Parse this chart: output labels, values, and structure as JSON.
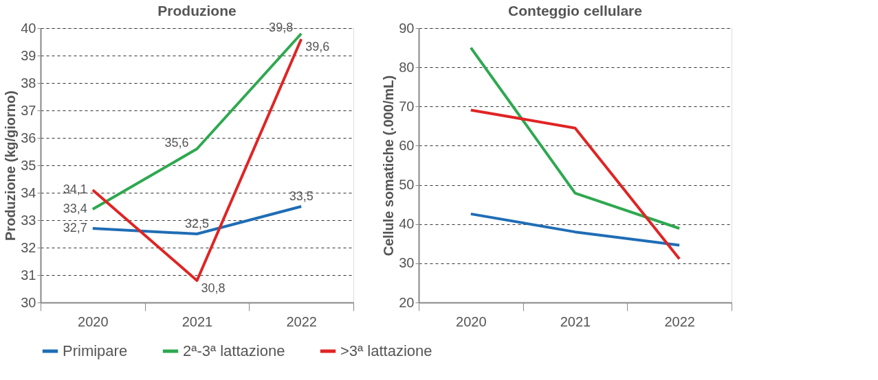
{
  "chart_data": [
    {
      "type": "line",
      "title": "Produzione",
      "ylabel": "Produzione (kg/giorno)",
      "categories": [
        "2020",
        "2021",
        "2022"
      ],
      "series": [
        {
          "name": "Primipare",
          "color": "#1f6db5",
          "values": [
            32.7,
            32.5,
            33.5
          ],
          "value_labels": [
            "32,7",
            "32,5",
            "33,5"
          ]
        },
        {
          "name": "2ª-3ª lattazione",
          "color": "#2ea84f",
          "values": [
            33.4,
            35.6,
            39.8
          ],
          "value_labels": [
            "33,4",
            "35,6",
            "39,8"
          ]
        },
        {
          "name": ">3ª lattazione",
          "color": "#e02424",
          "values": [
            34.1,
            30.8,
            39.6
          ],
          "value_labels": [
            "34,1",
            "30,8",
            "39,6"
          ]
        }
      ],
      "ylim": [
        30,
        40
      ],
      "yticks": [
        30,
        31,
        32,
        33,
        34,
        35,
        36,
        37,
        38,
        39,
        40
      ],
      "grid": "y",
      "legend": "bottom",
      "marker": "none",
      "line_style": "solid"
    },
    {
      "type": "line",
      "title": "Conteggio cellulare",
      "ylabel": "Cellule somatiche (.000/mL)",
      "categories": [
        "2020",
        "2021",
        "2022"
      ],
      "series": [
        {
          "name": "Primipare",
          "color": "#1f6db5",
          "values": [
            42.6,
            38.0,
            34.6
          ]
        },
        {
          "name": "2ª-3ª lattazione",
          "color": "#2ea84f",
          "values": [
            85.0,
            47.9,
            38.9
          ]
        },
        {
          "name": ">3ª lattazione",
          "color": "#e02424",
          "values": [
            69.1,
            64.5,
            31.1
          ]
        }
      ],
      "ylim": [
        20,
        90
      ],
      "yticks": [
        20,
        30,
        40,
        50,
        60,
        70,
        80,
        90
      ],
      "grid": "y",
      "legend": "bottom",
      "marker": "none",
      "line_style": "solid"
    }
  ]
}
